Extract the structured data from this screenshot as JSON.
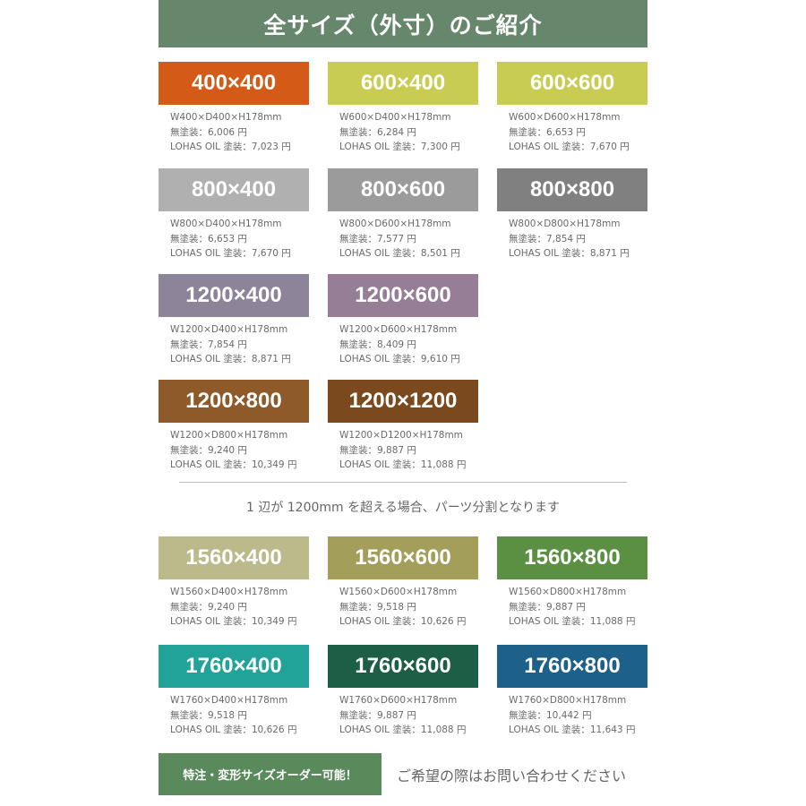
{
  "header": {
    "title": "全サイズ（外寸）のご紹介"
  },
  "sizes": [
    {
      "label": "400×400",
      "dims": "W400×D400×H178mm",
      "plain": "無塗装：6,006 円",
      "oil": "LOHAS OIL 塗装：7,023 円",
      "color": "#d35b17"
    },
    {
      "label": "600×400",
      "dims": "W600×D400×H178mm",
      "plain": "無塗装：6,284 円",
      "oil": "LOHAS OIL 塗装：7,300 円",
      "color": "#c8cc52"
    },
    {
      "label": "600×600",
      "dims": "W600×D600×H178mm",
      "plain": "無塗装：6,653 円",
      "oil": "LOHAS OIL 塗装：7,670 円",
      "color": "#c8cc52"
    },
    {
      "label": "800×400",
      "dims": "W800×D400×H178mm",
      "plain": "無塗装：6,653 円",
      "oil": "LOHAS OIL 塗装：7,670 円",
      "color": "#b0b0b0"
    },
    {
      "label": "800×600",
      "dims": "W800×D600×H178mm",
      "plain": "無塗装：7,577 円",
      "oil": "LOHAS OIL 塗装：8,501 円",
      "color": "#9b9b9b"
    },
    {
      "label": "800×800",
      "dims": "W800×D800×H178mm",
      "plain": "無塗装：7,854 円",
      "oil": "LOHAS OIL 塗装：8,871 円",
      "color": "#808080"
    },
    {
      "label": "1200×400",
      "dims": "W1200×D400×H178mm",
      "plain": "無塗装：7,854 円",
      "oil": "LOHAS OIL 塗装：8,871 円",
      "color": "#8d8499"
    },
    {
      "label": "1200×600",
      "dims": "W1200×D600×H178mm",
      "plain": "無塗装：8,409 円",
      "oil": "LOHAS OIL 塗装：9,610 円",
      "color": "#967f96"
    },
    {
      "label": "1200×800",
      "dims": "W1200×D800×H178mm",
      "plain": "無塗装：9,240 円",
      "oil": "LOHAS OIL 塗装：10,349 円",
      "color": "#8e5a2a"
    },
    {
      "label": "1200×1200",
      "dims": "W1200×D1200×H178mm",
      "plain": "無塗装：9,887 円",
      "oil": "LOHAS OIL 塗装：11,088 円",
      "color": "#7a4a1e"
    },
    {
      "label": "1560×400",
      "dims": "W1560×D400×H178mm",
      "plain": "無塗装：9,240 円",
      "oil": "LOHAS OIL 塗装：10,349 円",
      "color": "#bcb98a"
    },
    {
      "label": "1560×600",
      "dims": "W1560×D600×H178mm",
      "plain": "無塗装：9,518 円",
      "oil": "LOHAS OIL 塗装：10,626 円",
      "color": "#a39e59"
    },
    {
      "label": "1560×800",
      "dims": "W1560×D800×H178mm",
      "plain": "無塗装：9,887 円",
      "oil": "LOHAS OIL 塗装：11,088 円",
      "color": "#5b9042"
    },
    {
      "label": "1760×400",
      "dims": "W1760×D400×H178mm",
      "plain": "無塗装：9,518 円",
      "oil": "LOHAS OIL 塗装：10,626 円",
      "color": "#22a39a"
    },
    {
      "label": "1760×600",
      "dims": "W1760×D600×H178mm",
      "plain": "無塗装：9,887 円",
      "oil": "LOHAS OIL 塗装：11,088 円",
      "color": "#1d5e47"
    },
    {
      "label": "1760×800",
      "dims": "W1760×D800×H178mm",
      "plain": "無塗装：10,442 円",
      "oil": "LOHAS OIL 塗装：11,643 円",
      "color": "#1d6089"
    }
  ],
  "note": "1 辺が 1200mm を超える場合、パーツ分割となります",
  "footer": {
    "order_label": "特注・変形サイズオーダー可能！",
    "contact": "ご希望の際はお問い合わせください"
  }
}
